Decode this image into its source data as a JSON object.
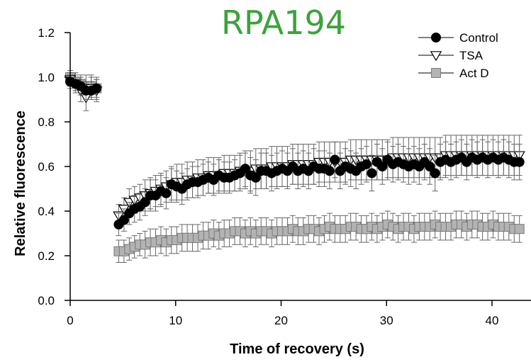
{
  "colors": {
    "title": "#3ba33b",
    "control_fill": "#000000",
    "tsa_fill": "#ffffff",
    "actd_fill": "#b3b3b3",
    "axis": "#000000",
    "errorbar": "#666666"
  },
  "chart_data": {
    "type": "scatter",
    "title": "RPA194",
    "xlabel": "Time of recovery (s)",
    "ylabel": "Relative fluorescence",
    "xlim": [
      0,
      43
    ],
    "ylim": [
      0.0,
      1.2
    ],
    "xticks": [
      "0",
      "10",
      "20",
      "30",
      "40"
    ],
    "xtick_values": [
      0,
      10,
      20,
      30,
      40
    ],
    "yticks": [
      "0.0",
      "0.2",
      "0.4",
      "0.6",
      "0.8",
      "1.0",
      "1.2"
    ],
    "ytick_values": [
      0.0,
      0.2,
      0.4,
      0.6,
      0.8,
      1.0,
      1.2
    ],
    "grid": false,
    "legend_position": "top-right",
    "error_bars": true,
    "series": [
      {
        "name": "Control",
        "marker": "circle",
        "x": [
          0,
          0.5,
          1.0,
          1.5,
          2.0,
          2.5,
          4.6,
          5.1,
          5.6,
          6.1,
          6.6,
          7.1,
          7.6,
          8.1,
          8.6,
          9.1,
          9.6,
          10.1,
          10.6,
          11.1,
          11.6,
          12.1,
          12.6,
          13.1,
          13.6,
          14.1,
          14.6,
          15.1,
          15.6,
          16.1,
          16.6,
          17.1,
          17.6,
          18.1,
          18.6,
          19.1,
          19.6,
          20.1,
          20.6,
          21.1,
          21.6,
          22.1,
          22.6,
          23.1,
          23.6,
          24.1,
          24.6,
          25.1,
          25.6,
          26.1,
          26.6,
          27.1,
          27.6,
          28.1,
          28.6,
          29.1,
          29.6,
          30.1,
          30.6,
          31.1,
          31.6,
          32.1,
          32.6,
          33.1,
          33.6,
          34.1,
          34.6,
          35.1,
          35.6,
          36.1,
          36.6,
          37.1,
          37.6,
          38.1,
          38.6,
          39.1,
          39.6,
          40.1,
          40.6,
          41.1,
          41.6,
          42.1,
          42.6
        ],
        "values": [
          0.98,
          0.97,
          0.96,
          0.94,
          0.94,
          0.95,
          0.34,
          0.36,
          0.39,
          0.41,
          0.42,
          0.44,
          0.47,
          0.47,
          0.49,
          0.48,
          0.52,
          0.51,
          0.5,
          0.52,
          0.53,
          0.53,
          0.54,
          0.55,
          0.54,
          0.56,
          0.55,
          0.55,
          0.56,
          0.57,
          0.59,
          0.56,
          0.55,
          0.58,
          0.58,
          0.57,
          0.58,
          0.59,
          0.58,
          0.6,
          0.58,
          0.59,
          0.58,
          0.6,
          0.59,
          0.59,
          0.58,
          0.63,
          0.58,
          0.6,
          0.59,
          0.58,
          0.6,
          0.61,
          0.57,
          0.62,
          0.6,
          0.63,
          0.61,
          0.62,
          0.61,
          0.6,
          0.61,
          0.6,
          0.62,
          0.6,
          0.57,
          0.62,
          0.63,
          0.62,
          0.63,
          0.64,
          0.62,
          0.64,
          0.63,
          0.64,
          0.63,
          0.64,
          0.63,
          0.64,
          0.63,
          0.62,
          0.62
        ],
        "err": [
          0.03,
          0.03,
          0.04,
          0.04,
          0.04,
          0.04,
          0.05,
          0.05,
          0.05,
          0.06,
          0.06,
          0.06,
          0.07,
          0.07,
          0.07,
          0.07,
          0.07,
          0.07,
          0.07,
          0.07,
          0.07,
          0.07,
          0.07,
          0.07,
          0.07,
          0.07,
          0.07,
          0.07,
          0.07,
          0.08,
          0.08,
          0.08,
          0.08,
          0.08,
          0.08,
          0.08,
          0.08,
          0.08,
          0.08,
          0.08,
          0.08,
          0.08,
          0.08,
          0.08,
          0.08,
          0.08,
          0.08,
          0.08,
          0.08,
          0.08,
          0.08,
          0.08,
          0.08,
          0.08,
          0.08,
          0.08,
          0.08,
          0.08,
          0.08,
          0.08,
          0.08,
          0.08,
          0.08,
          0.08,
          0.08,
          0.08,
          0.08,
          0.08,
          0.08,
          0.08,
          0.08,
          0.08,
          0.08,
          0.08,
          0.08,
          0.08,
          0.08,
          0.08,
          0.08,
          0.08,
          0.08,
          0.08,
          0.08
        ]
      },
      {
        "name": "TSA",
        "marker": "triangle-down",
        "x": [
          0,
          0.5,
          1.0,
          1.5,
          2.0,
          2.5,
          4.6,
          5.1,
          5.6,
          6.1,
          6.6,
          7.1,
          7.6,
          8.1,
          8.6,
          9.1,
          9.6,
          10.1,
          10.6,
          11.1,
          11.6,
          12.1,
          12.6,
          13.1,
          13.6,
          14.1,
          14.6,
          15.1,
          15.6,
          16.1,
          16.6,
          17.1,
          17.6,
          18.1,
          18.6,
          19.1,
          19.6,
          20.1,
          20.6,
          21.1,
          21.6,
          22.1,
          22.6,
          23.1,
          23.6,
          24.1,
          24.6,
          25.1,
          25.6,
          26.1,
          26.6,
          27.1,
          27.6,
          28.1,
          28.6,
          29.1,
          29.6,
          30.1,
          30.6,
          31.1,
          31.6,
          32.1,
          32.6,
          33.1,
          33.6,
          34.1,
          34.6,
          35.1,
          35.6,
          36.1,
          36.6,
          37.1,
          37.6,
          38.1,
          38.6,
          39.1,
          39.6,
          40.1,
          40.6,
          41.1,
          41.6,
          42.1,
          42.6
        ],
        "values": [
          0.99,
          0.97,
          0.94,
          0.91,
          0.95,
          0.94,
          0.38,
          0.41,
          0.44,
          0.45,
          0.46,
          0.47,
          0.48,
          0.49,
          0.5,
          0.51,
          0.52,
          0.53,
          0.53,
          0.54,
          0.54,
          0.55,
          0.55,
          0.56,
          0.56,
          0.56,
          0.57,
          0.57,
          0.57,
          0.58,
          0.58,
          0.58,
          0.59,
          0.59,
          0.59,
          0.6,
          0.6,
          0.6,
          0.6,
          0.61,
          0.61,
          0.61,
          0.61,
          0.61,
          0.62,
          0.62,
          0.62,
          0.62,
          0.62,
          0.62,
          0.63,
          0.63,
          0.63,
          0.63,
          0.63,
          0.63,
          0.63,
          0.63,
          0.64,
          0.64,
          0.64,
          0.64,
          0.64,
          0.64,
          0.64,
          0.64,
          0.64,
          0.64,
          0.65,
          0.65,
          0.65,
          0.65,
          0.65,
          0.65,
          0.65,
          0.65,
          0.65,
          0.65,
          0.65,
          0.65,
          0.65,
          0.65,
          0.65
        ],
        "err": [
          0.03,
          0.04,
          0.05,
          0.06,
          0.05,
          0.05,
          0.05,
          0.05,
          0.06,
          0.06,
          0.06,
          0.07,
          0.07,
          0.07,
          0.07,
          0.07,
          0.08,
          0.08,
          0.08,
          0.08,
          0.08,
          0.08,
          0.08,
          0.08,
          0.08,
          0.08,
          0.08,
          0.08,
          0.08,
          0.08,
          0.08,
          0.09,
          0.09,
          0.09,
          0.09,
          0.09,
          0.09,
          0.09,
          0.09,
          0.09,
          0.09,
          0.09,
          0.09,
          0.09,
          0.09,
          0.09,
          0.09,
          0.09,
          0.09,
          0.09,
          0.09,
          0.09,
          0.09,
          0.09,
          0.09,
          0.09,
          0.09,
          0.09,
          0.09,
          0.09,
          0.09,
          0.09,
          0.09,
          0.09,
          0.09,
          0.09,
          0.09,
          0.09,
          0.09,
          0.09,
          0.09,
          0.09,
          0.09,
          0.09,
          0.09,
          0.09,
          0.09,
          0.09,
          0.09,
          0.09,
          0.09,
          0.09,
          0.09
        ]
      },
      {
        "name": "Act D",
        "marker": "square",
        "x": [
          0,
          0.5,
          1.0,
          1.5,
          2.0,
          2.5,
          4.6,
          5.1,
          5.6,
          6.1,
          6.6,
          7.1,
          7.6,
          8.1,
          8.6,
          9.1,
          9.6,
          10.1,
          10.6,
          11.1,
          11.6,
          12.1,
          12.6,
          13.1,
          13.6,
          14.1,
          14.6,
          15.1,
          15.6,
          16.1,
          16.6,
          17.1,
          17.6,
          18.1,
          18.6,
          19.1,
          19.6,
          20.1,
          20.6,
          21.1,
          21.6,
          22.1,
          22.6,
          23.1,
          23.6,
          24.1,
          24.6,
          25.1,
          25.6,
          26.1,
          26.6,
          27.1,
          27.6,
          28.1,
          28.6,
          29.1,
          29.6,
          30.1,
          30.6,
          31.1,
          31.6,
          32.1,
          32.6,
          33.1,
          33.6,
          34.1,
          34.6,
          35.1,
          35.6,
          36.1,
          36.6,
          37.1,
          37.6,
          38.1,
          38.6,
          39.1,
          39.6,
          40.1,
          40.6,
          41.1,
          41.6,
          42.1,
          42.6
        ],
        "values": [
          1.0,
          0.98,
          0.97,
          0.96,
          0.96,
          0.95,
          0.22,
          0.22,
          0.23,
          0.24,
          0.25,
          0.25,
          0.26,
          0.26,
          0.27,
          0.26,
          0.27,
          0.27,
          0.28,
          0.28,
          0.28,
          0.28,
          0.29,
          0.29,
          0.3,
          0.29,
          0.3,
          0.3,
          0.31,
          0.31,
          0.3,
          0.31,
          0.3,
          0.31,
          0.31,
          0.3,
          0.31,
          0.31,
          0.31,
          0.32,
          0.31,
          0.31,
          0.32,
          0.32,
          0.31,
          0.32,
          0.33,
          0.32,
          0.32,
          0.32,
          0.33,
          0.33,
          0.32,
          0.32,
          0.33,
          0.32,
          0.33,
          0.34,
          0.33,
          0.32,
          0.33,
          0.33,
          0.32,
          0.33,
          0.33,
          0.33,
          0.34,
          0.33,
          0.33,
          0.33,
          0.34,
          0.34,
          0.33,
          0.34,
          0.34,
          0.33,
          0.33,
          0.34,
          0.33,
          0.33,
          0.33,
          0.32,
          0.32
        ],
        "err": [
          0.03,
          0.04,
          0.04,
          0.05,
          0.05,
          0.05,
          0.05,
          0.05,
          0.05,
          0.05,
          0.05,
          0.06,
          0.06,
          0.06,
          0.06,
          0.06,
          0.06,
          0.06,
          0.06,
          0.06,
          0.06,
          0.06,
          0.06,
          0.06,
          0.06,
          0.06,
          0.06,
          0.06,
          0.06,
          0.06,
          0.06,
          0.06,
          0.06,
          0.06,
          0.06,
          0.06,
          0.06,
          0.06,
          0.06,
          0.06,
          0.06,
          0.06,
          0.06,
          0.06,
          0.06,
          0.06,
          0.06,
          0.06,
          0.06,
          0.06,
          0.06,
          0.06,
          0.06,
          0.06,
          0.06,
          0.06,
          0.06,
          0.06,
          0.06,
          0.06,
          0.06,
          0.06,
          0.06,
          0.06,
          0.06,
          0.06,
          0.06,
          0.06,
          0.06,
          0.06,
          0.06,
          0.06,
          0.06,
          0.06,
          0.06,
          0.06,
          0.06,
          0.06,
          0.06,
          0.06,
          0.06,
          0.06,
          0.06
        ]
      }
    ]
  }
}
